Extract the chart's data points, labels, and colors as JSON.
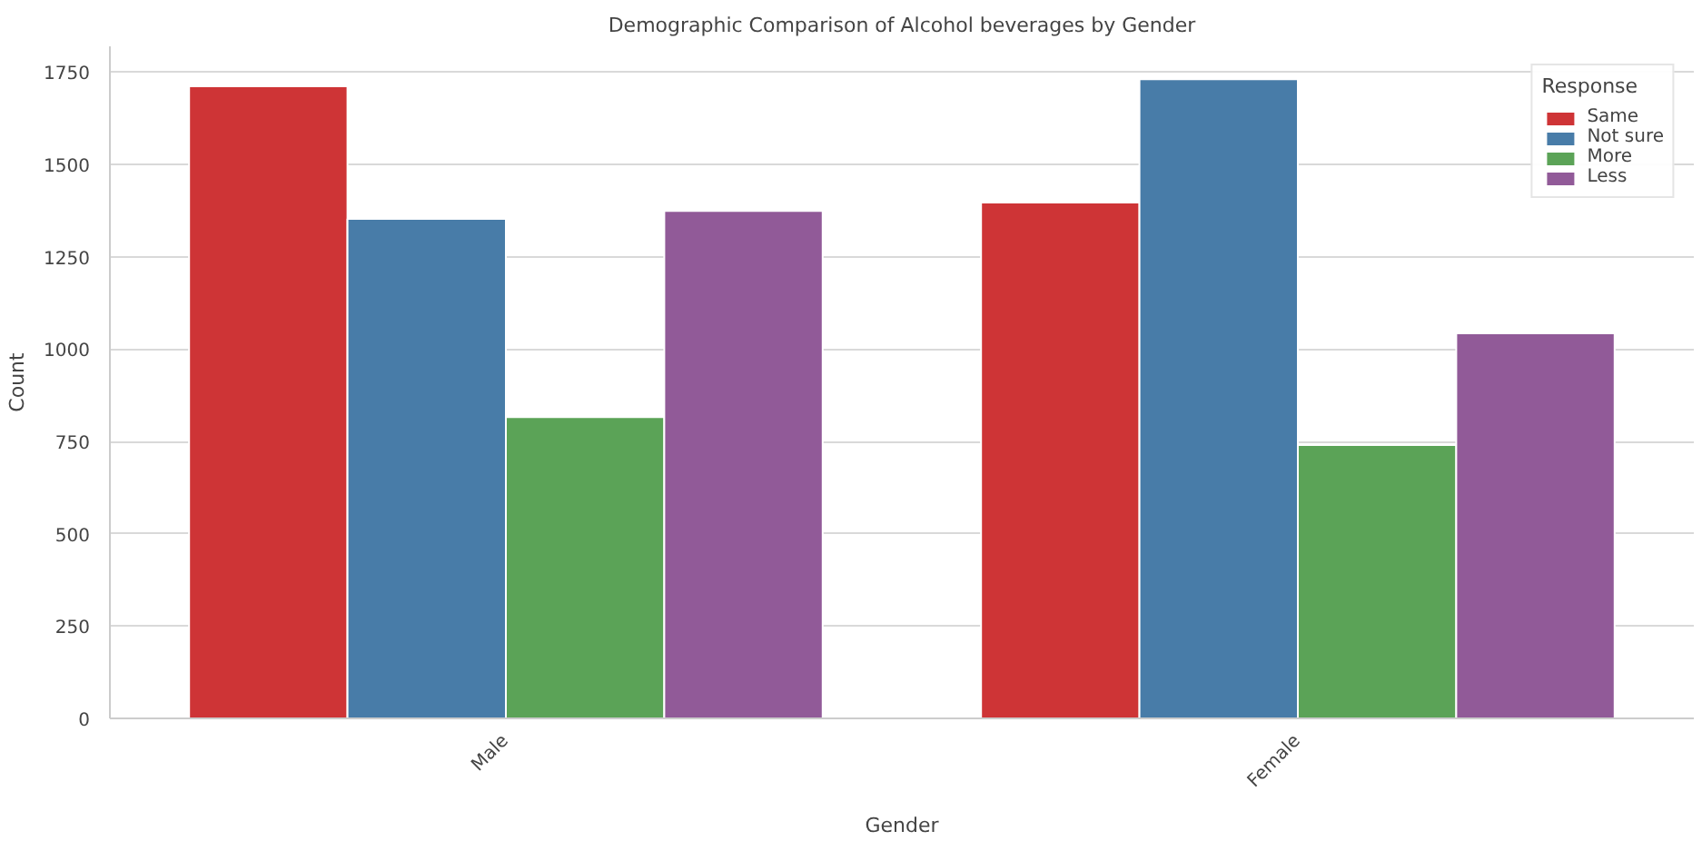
{
  "chart_data": {
    "type": "bar",
    "title": "Demographic Comparison of Alcohol beverages by Gender",
    "xlabel": "Gender",
    "ylabel": "Count",
    "legend_title": "Response",
    "categories": [
      "Male",
      "Female"
    ],
    "series": [
      {
        "name": "Same",
        "color": "#ce3436",
        "values": [
          1712,
          1397
        ]
      },
      {
        "name": "Not sure",
        "color": "#487ca8",
        "values": [
          1353,
          1731
        ]
      },
      {
        "name": "More",
        "color": "#5ba357",
        "values": [
          816,
          740
        ]
      },
      {
        "name": "Less",
        "color": "#915a98",
        "values": [
          1374,
          1043
        ]
      }
    ],
    "ylim": [
      0,
      1820
    ],
    "yticks": [
      0,
      250,
      500,
      750,
      1000,
      1250,
      1500,
      1750
    ],
    "grid": "y",
    "legend": "top right"
  }
}
